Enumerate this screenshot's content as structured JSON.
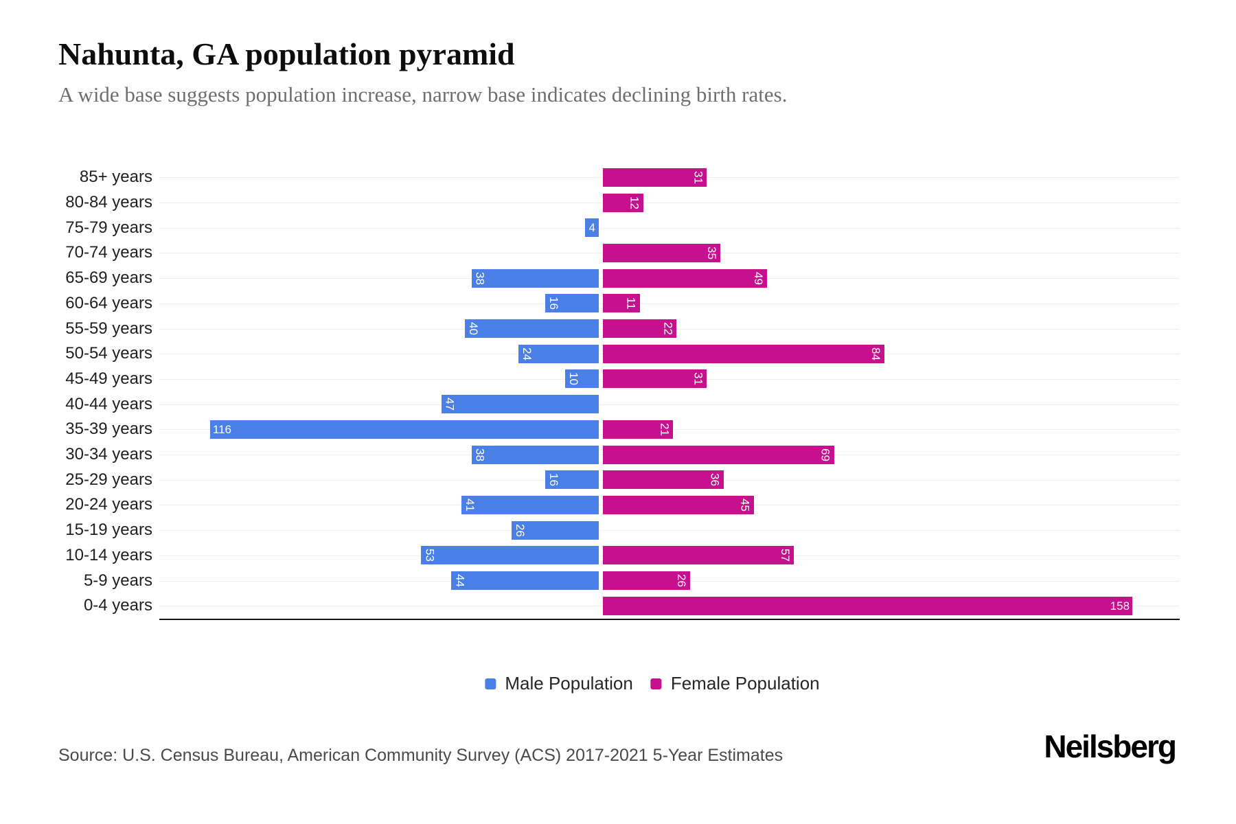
{
  "chart_data": {
    "type": "bar",
    "variant": "population-pyramid",
    "title": "Nahunta, GA population pyramid",
    "subtitle": "A wide base suggests population increase, narrow base indicates declining birth rates.",
    "categories": [
      "85+ years",
      "80-84 years",
      "75-79 years",
      "70-74 years",
      "65-69 years",
      "60-64 years",
      "55-59 years",
      "50-54 years",
      "45-49 years",
      "40-44 years",
      "35-39 years",
      "30-34 years",
      "25-29 years",
      "20-24 years",
      "15-19 years",
      "10-14 years",
      "5-9 years",
      "0-4 years"
    ],
    "series": [
      {
        "name": "Male Population",
        "side": "left",
        "color": "#4A7FE7",
        "values": [
          0,
          0,
          4,
          0,
          38,
          16,
          40,
          24,
          10,
          47,
          116,
          38,
          16,
          41,
          26,
          53,
          44,
          0
        ]
      },
      {
        "name": "Female Population",
        "side": "right",
        "color": "#C6108D",
        "values": [
          31,
          12,
          0,
          35,
          49,
          11,
          22,
          84,
          31,
          0,
          21,
          69,
          36,
          45,
          0,
          57,
          26,
          158
        ]
      }
    ],
    "value_labels": "white, inside outer end of each bar; two-digit values rotated 90deg",
    "grid": "faint horizontal lines per age row, no vertical gridlines",
    "x_axis_tick_labels_visible": false,
    "baseline": "dark horizontal line under bottom row",
    "legend_position": "bottom-center"
  },
  "footer": {
    "source": "Source: U.S. Census Bureau, American Community Survey (ACS) 2017-2021 5-Year Estimates",
    "brand": "Neilsberg"
  }
}
